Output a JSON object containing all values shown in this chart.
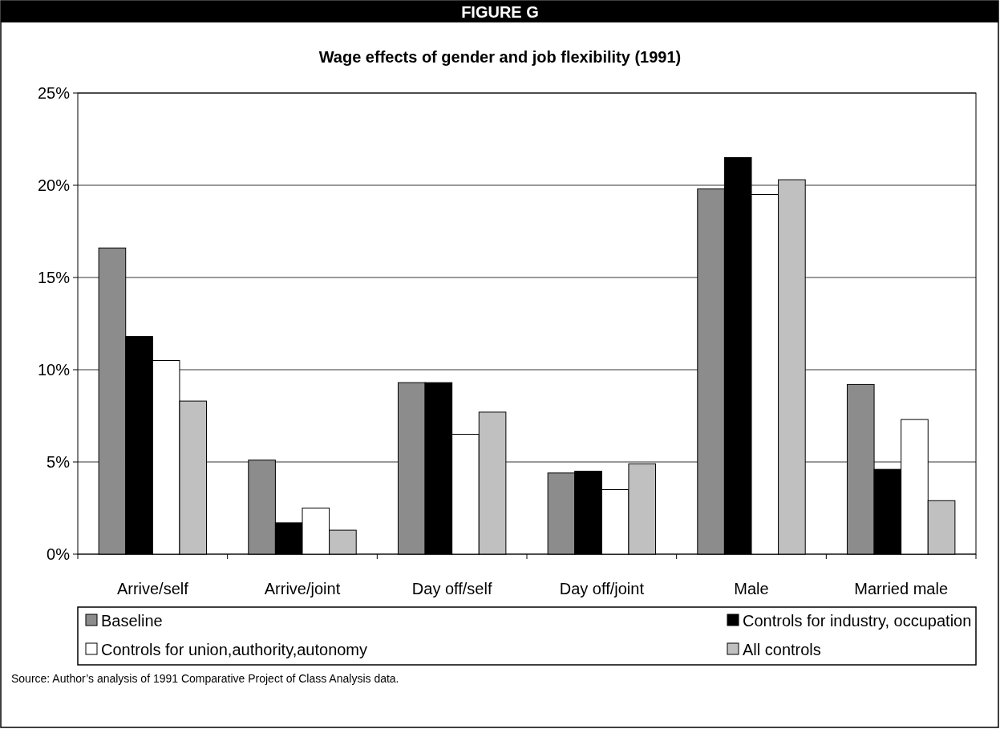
{
  "chart_data": {
    "type": "bar",
    "title": "FIGURE G",
    "subtitle": "Wage effects of gender and job flexibility (1991)",
    "categories": [
      "Arrive/self",
      "Arrive/joint",
      "Day off/self",
      "Day off/joint",
      "Male",
      "Married male"
    ],
    "series": [
      {
        "name": "Baseline",
        "color": "#8c8c8c",
        "values": [
          16.6,
          5.1,
          9.3,
          4.4,
          19.8,
          9.2
        ]
      },
      {
        "name": "Controls for industry, occupation",
        "color": "#000000",
        "values": [
          11.8,
          1.7,
          9.3,
          4.5,
          21.5,
          4.6
        ]
      },
      {
        "name": "Controls for union,authority,autonomy",
        "color": "#ffffff",
        "values": [
          10.5,
          2.5,
          6.5,
          3.5,
          19.5,
          7.3
        ]
      },
      {
        "name": "All controls",
        "color": "#c0c0c0",
        "values": [
          8.3,
          1.3,
          7.7,
          4.9,
          20.3,
          2.9
        ]
      }
    ],
    "ylim": [
      0,
      25
    ],
    "yticks": [
      {
        "value": 0,
        "label": "0%"
      },
      {
        "value": 5,
        "label": "5%"
      },
      {
        "value": 10,
        "label": "10%"
      },
      {
        "value": 15,
        "label": "15%"
      },
      {
        "value": 20,
        "label": "20%"
      },
      {
        "value": 25,
        "label": "25%"
      }
    ],
    "grid": "y",
    "legend": "bottom",
    "annotations": [
      "Source: Author’s analysis of 1991 Comparative Project of Class Analysis data."
    ]
  }
}
